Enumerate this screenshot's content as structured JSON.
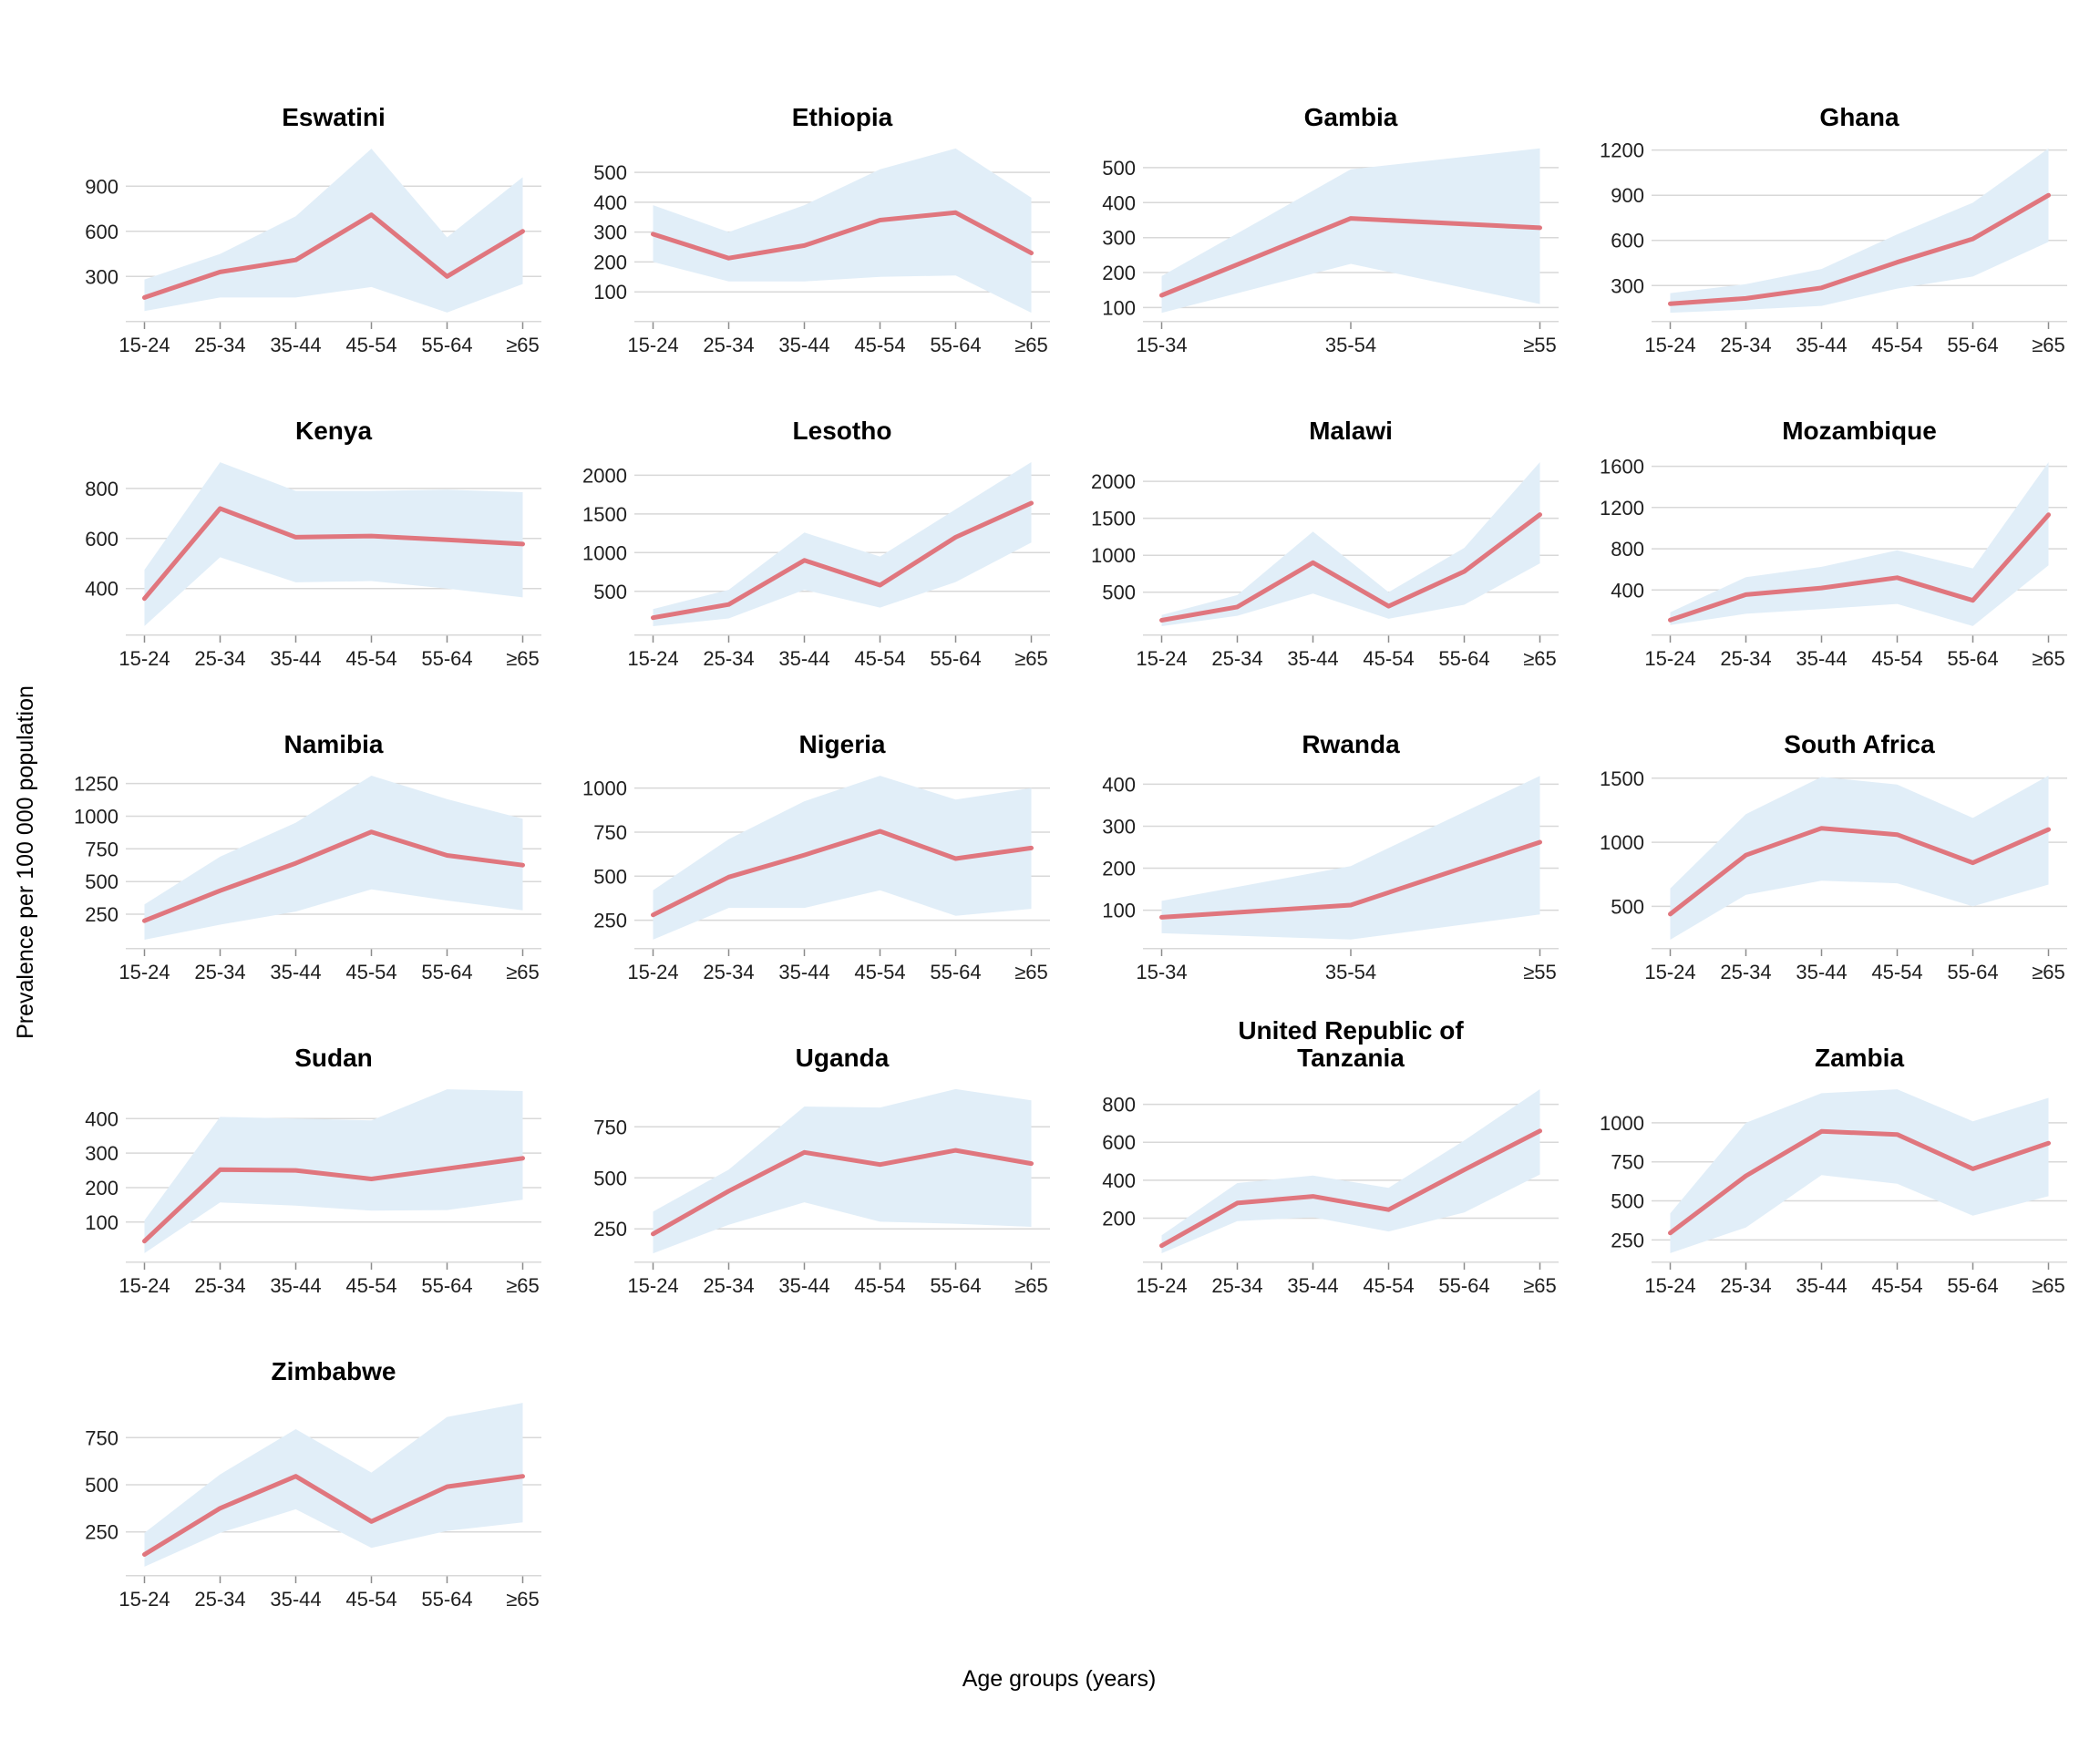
{
  "axis": {
    "y_label": "Prevalence per 100 000 population",
    "x_label": "Age groups (years)"
  },
  "style": {
    "line_color": "#E0767E",
    "band_color": "#E1EEF8",
    "grid_color": "#D8D8D8",
    "axis_line_color": "#D8D8D8",
    "tick_mark_color": "#8C8C8C",
    "tick_text_color": "#1F1F1F",
    "title_color": "#000000"
  },
  "chart_data": [
    {
      "type": "line",
      "title": "Eswatini",
      "categories": [
        "15-24",
        "25-34",
        "35-44",
        "45-54",
        "55-64",
        "≥65"
      ],
      "values": [
        160,
        330,
        410,
        710,
        300,
        600
      ],
      "lower": [
        70,
        160,
        160,
        230,
        60,
        250
      ],
      "upper": [
        280,
        450,
        700,
        1150,
        560,
        960
      ],
      "yticks": [
        300,
        600,
        900
      ],
      "ylim": [
        5,
        1205
      ]
    },
    {
      "type": "line",
      "title": "Ethiopia",
      "categories": [
        "15-24",
        "25-34",
        "35-44",
        "45-54",
        "55-64",
        "≥65"
      ],
      "values": [
        293,
        213,
        255,
        340,
        365,
        230
      ],
      "lower": [
        200,
        135,
        135,
        150,
        155,
        30
      ],
      "upper": [
        390,
        300,
        390,
        510,
        580,
        415
      ],
      "yticks": [
        100,
        200,
        300,
        400,
        500
      ],
      "ylim": [
        3,
        607
      ]
    },
    {
      "type": "line",
      "title": "Gambia",
      "categories": [
        "15-34",
        "35-54",
        "≥55"
      ],
      "values": [
        135,
        355,
        328
      ],
      "lower": [
        85,
        225,
        110
      ],
      "upper": [
        190,
        495,
        555
      ],
      "yticks": [
        100,
        200,
        300,
        400,
        500
      ],
      "ylim": [
        62,
        578
      ]
    },
    {
      "type": "line",
      "title": "Ghana",
      "categories": [
        "15-24",
        "25-34",
        "35-44",
        "45-54",
        "55-64",
        "≥65"
      ],
      "values": [
        180,
        215,
        285,
        455,
        610,
        900
      ],
      "lower": [
        120,
        140,
        165,
        280,
        360,
        590
      ],
      "upper": [
        250,
        310,
        410,
        640,
        850,
        1210
      ],
      "yticks": [
        300,
        600,
        900,
        1200
      ],
      "ylim": [
        66,
        1264
      ]
    },
    {
      "type": "line",
      "title": "Kenya",
      "categories": [
        "15-24",
        "25-34",
        "35-44",
        "45-54",
        "55-64",
        "≥65"
      ],
      "values": [
        360,
        720,
        605,
        610,
        595,
        578
      ],
      "lower": [
        250,
        525,
        425,
        430,
        400,
        365
      ],
      "upper": [
        475,
        905,
        790,
        790,
        795,
        785
      ],
      "yticks": [
        400,
        600,
        800
      ],
      "ylim": [
        217,
        938
      ]
    },
    {
      "type": "line",
      "title": "Lesotho",
      "categories": [
        "15-24",
        "25-34",
        "35-44",
        "45-54",
        "55-64",
        "≥65"
      ],
      "values": [
        160,
        330,
        900,
        580,
        1200,
        1640
      ],
      "lower": [
        50,
        150,
        520,
        290,
        620,
        1130
      ],
      "upper": [
        270,
        520,
        1260,
        950,
        1560,
        2170
      ],
      "yticks": [
        500,
        1000,
        1500,
        2000
      ],
      "ylim": [
        -56,
        2276
      ]
    },
    {
      "type": "line",
      "title": "Malawi",
      "categories": [
        "15-24",
        "25-34",
        "35-44",
        "45-54",
        "55-64",
        "≥65"
      ],
      "values": [
        120,
        300,
        900,
        310,
        780,
        1550
      ],
      "lower": [
        40,
        180,
        480,
        140,
        330,
        890
      ],
      "upper": [
        190,
        460,
        1320,
        500,
        1100,
        2260
      ],
      "yticks": [
        500,
        1000,
        1500,
        2000
      ],
      "ylim": [
        -71,
        2371
      ]
    },
    {
      "type": "line",
      "title": "Mozambique",
      "categories": [
        "15-24",
        "25-34",
        "35-44",
        "45-54",
        "55-64",
        "≥65"
      ],
      "values": [
        110,
        355,
        420,
        520,
        300,
        1130
      ],
      "lower": [
        60,
        170,
        215,
        265,
        50,
        640
      ],
      "upper": [
        185,
        525,
        625,
        785,
        610,
        1640
      ],
      "yticks": [
        400,
        800,
        1200,
        1600
      ],
      "ylim": [
        -30,
        1720
      ]
    },
    {
      "type": "line",
      "title": "Namibia",
      "categories": [
        "15-24",
        "25-34",
        "35-44",
        "45-54",
        "55-64",
        "≥65"
      ],
      "values": [
        200,
        430,
        640,
        880,
        700,
        625
      ],
      "lower": [
        55,
        170,
        270,
        440,
        355,
        280
      ],
      "upper": [
        325,
        690,
        950,
        1310,
        1130,
        980
      ],
      "yticks": [
        250,
        500,
        750,
        1000,
        1250
      ],
      "ylim": [
        -8,
        1373
      ]
    },
    {
      "type": "line",
      "title": "Nigeria",
      "categories": [
        "15-24",
        "25-34",
        "35-44",
        "45-54",
        "55-64",
        "≥65"
      ],
      "values": [
        280,
        495,
        620,
        755,
        600,
        660
      ],
      "lower": [
        140,
        320,
        320,
        420,
        275,
        315
      ],
      "upper": [
        420,
        710,
        925,
        1070,
        935,
        1000
      ],
      "yticks": [
        250,
        500,
        750,
        1000
      ],
      "ylim": [
        93,
        1117
      ]
    },
    {
      "type": "line",
      "title": "Rwanda",
      "categories": [
        "15-34",
        "35-54",
        "≥55"
      ],
      "values": [
        83,
        112,
        262
      ],
      "lower": [
        45,
        30,
        90
      ],
      "upper": [
        122,
        205,
        420
      ],
      "yticks": [
        100,
        200,
        300,
        400
      ],
      "ylim": [
        10,
        440
      ]
    },
    {
      "type": "line",
      "title": "South Africa",
      "categories": [
        "15-24",
        "25-34",
        "35-44",
        "45-54",
        "55-64",
        "≥65"
      ],
      "values": [
        440,
        900,
        1110,
        1060,
        840,
        1100
      ],
      "lower": [
        240,
        590,
        700,
        680,
        500,
        670
      ],
      "upper": [
        640,
        1220,
        1510,
        1450,
        1190,
        1520
      ],
      "yticks": [
        500,
        1000,
        1500
      ],
      "ylim": [
        176,
        1584
      ]
    },
    {
      "type": "line",
      "title": "Sudan",
      "categories": [
        "15-24",
        "25-34",
        "35-44",
        "45-54",
        "55-64",
        "≥65"
      ],
      "values": [
        45,
        252,
        250,
        225,
        255,
        285
      ],
      "lower": [
        10,
        157,
        148,
        133,
        135,
        165
      ],
      "upper": [
        105,
        405,
        400,
        395,
        485,
        480
      ],
      "yticks": [
        100,
        200,
        300,
        400
      ],
      "ylim": [
        -14,
        509
      ]
    },
    {
      "type": "line",
      "title": "Uganda",
      "categories": [
        "15-24",
        "25-34",
        "35-44",
        "45-54",
        "55-64",
        "≥65"
      ],
      "values": [
        225,
        435,
        625,
        565,
        635,
        570
      ],
      "lower": [
        130,
        270,
        380,
        285,
        275,
        260
      ],
      "upper": [
        335,
        540,
        850,
        845,
        935,
        880
      ],
      "yticks": [
        250,
        500,
        750
      ],
      "ylim": [
        90,
        975
      ]
    },
    {
      "type": "line",
      "title": "United Republic of\nTanzania",
      "categories": [
        "15-24",
        "25-34",
        "35-44",
        "45-54",
        "55-64",
        "≥65"
      ],
      "values": [
        55,
        280,
        315,
        245,
        455,
        660
      ],
      "lower": [
        15,
        185,
        205,
        130,
        230,
        430
      ],
      "upper": [
        110,
        385,
        425,
        360,
        610,
        880
      ],
      "yticks": [
        200,
        400,
        600,
        800
      ],
      "ylim": [
        -28,
        923
      ]
    },
    {
      "type": "line",
      "title": "Zambia",
      "categories": [
        "15-24",
        "25-34",
        "35-44",
        "45-54",
        "55-64",
        "≥65"
      ],
      "values": [
        295,
        660,
        945,
        925,
        705,
        870
      ],
      "lower": [
        165,
        330,
        665,
        610,
        405,
        530
      ],
      "upper": [
        420,
        1000,
        1190,
        1215,
        1010,
        1160
      ],
      "yticks": [
        250,
        500,
        750,
        1000
      ],
      "ylim": [
        112,
        1268
      ]
    },
    {
      "type": "line",
      "title": "Zimbabwe",
      "categories": [
        "15-24",
        "25-34",
        "35-44",
        "45-54",
        "55-64",
        "≥65"
      ],
      "values": [
        130,
        375,
        545,
        305,
        490,
        545
      ],
      "lower": [
        65,
        245,
        370,
        165,
        255,
        300
      ],
      "upper": [
        245,
        555,
        795,
        565,
        860,
        935
      ],
      "yticks": [
        250,
        500,
        750
      ],
      "ylim": [
        21,
        979
      ]
    }
  ]
}
